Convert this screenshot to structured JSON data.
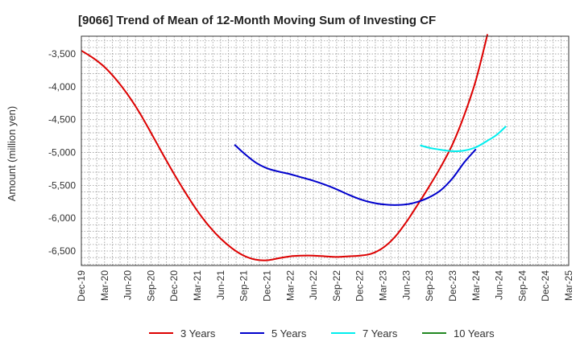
{
  "chart_data": {
    "type": "line",
    "title": "[9066]  Trend of Mean of 12-Month Moving Sum of Investing CF",
    "xlabel": "",
    "ylabel": "Amount (million yen)",
    "ylim": [
      -6720,
      -3230
    ],
    "yticks": [
      -3500,
      -4000,
      -4500,
      -5000,
      -5500,
      -6000,
      -6500
    ],
    "ytick_labels": [
      "-3,500",
      "-4,000",
      "-4,500",
      "-5,000",
      "-5,500",
      "-6,000",
      "-6,500"
    ],
    "x_labels": [
      "Dec-19",
      "Mar-20",
      "Jun-20",
      "Sep-20",
      "Dec-20",
      "Mar-21",
      "Jun-21",
      "Sep-21",
      "Dec-21",
      "Mar-22",
      "Jun-22",
      "Sep-22",
      "Dec-22",
      "Mar-23",
      "Jun-23",
      "Sep-23",
      "Dec-23",
      "Mar-24",
      "Jun-24",
      "Sep-24",
      "Dec-24",
      "Mar-25"
    ],
    "x_unit": "quarters from Dec-19",
    "series": [
      {
        "name": "3 Years",
        "color": "#dd0000",
        "points": [
          [
            0,
            -3450
          ],
          [
            0.5,
            -3560
          ],
          [
            1,
            -3700
          ],
          [
            1.5,
            -3890
          ],
          [
            2,
            -4120
          ],
          [
            2.5,
            -4390
          ],
          [
            3,
            -4700
          ],
          [
            3.5,
            -5020
          ],
          [
            4,
            -5330
          ],
          [
            4.5,
            -5620
          ],
          [
            5,
            -5890
          ],
          [
            5.5,
            -6120
          ],
          [
            6,
            -6310
          ],
          [
            6.5,
            -6460
          ],
          [
            7,
            -6570
          ],
          [
            7.5,
            -6630
          ],
          [
            8,
            -6640
          ],
          [
            8.5,
            -6610
          ],
          [
            9,
            -6580
          ],
          [
            9.5,
            -6570
          ],
          [
            10,
            -6570
          ],
          [
            10.5,
            -6580
          ],
          [
            11,
            -6590
          ],
          [
            11.5,
            -6580
          ],
          [
            12,
            -6570
          ],
          [
            12.5,
            -6540
          ],
          [
            13,
            -6450
          ],
          [
            13.5,
            -6290
          ],
          [
            14,
            -6060
          ],
          [
            14.5,
            -5790
          ],
          [
            15,
            -5510
          ],
          [
            15.5,
            -5210
          ],
          [
            16,
            -4870
          ],
          [
            16.5,
            -4430
          ],
          [
            17,
            -3900
          ],
          [
            17.5,
            -3200
          ]
        ]
      },
      {
        "name": "5 Years",
        "color": "#0000cc",
        "points": [
          [
            6.6,
            -4880
          ],
          [
            7,
            -5010
          ],
          [
            7.5,
            -5150
          ],
          [
            8,
            -5240
          ],
          [
            8.5,
            -5290
          ],
          [
            9,
            -5330
          ],
          [
            9.5,
            -5380
          ],
          [
            10,
            -5430
          ],
          [
            10.5,
            -5490
          ],
          [
            11,
            -5560
          ],
          [
            11.5,
            -5640
          ],
          [
            12,
            -5710
          ],
          [
            12.5,
            -5760
          ],
          [
            13,
            -5790
          ],
          [
            13.5,
            -5800
          ],
          [
            14,
            -5790
          ],
          [
            14.5,
            -5750
          ],
          [
            15,
            -5680
          ],
          [
            15.5,
            -5570
          ],
          [
            16,
            -5390
          ],
          [
            16.5,
            -5150
          ],
          [
            17,
            -4950
          ]
        ]
      },
      {
        "name": "7 Years",
        "color": "#00eeee",
        "points": [
          [
            14.6,
            -4890
          ],
          [
            15,
            -4930
          ],
          [
            15.5,
            -4960
          ],
          [
            16,
            -4980
          ],
          [
            16.5,
            -4970
          ],
          [
            17,
            -4920
          ],
          [
            17.5,
            -4820
          ],
          [
            17.9,
            -4730
          ],
          [
            18.3,
            -4600
          ]
        ]
      },
      {
        "name": "10 Years",
        "color": "#228822",
        "points": []
      }
    ]
  }
}
